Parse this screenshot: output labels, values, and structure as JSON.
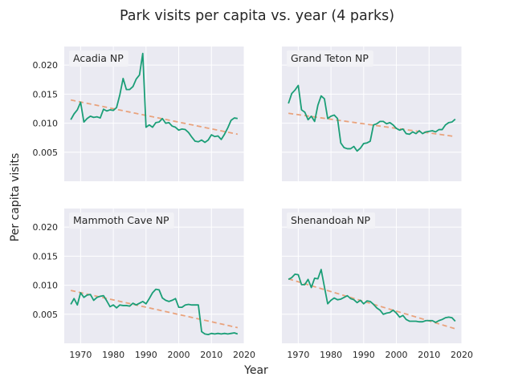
{
  "figure": {
    "title": "Park visits per capita vs. year (4 parks)",
    "xlabel": "Year",
    "ylabel": "Per capita visits"
  },
  "colors": {
    "background": "#eaeaf2",
    "grid": "#ffffff",
    "series": "#1b9e77",
    "trend": "#e9a27c",
    "label_box": "#f2f2f6"
  },
  "chart_data": {
    "type": "line",
    "layout": "2x2 small multiples, shared x and y axes",
    "xlim": [
      1965,
      2020
    ],
    "ylim": [
      0,
      0.0232
    ],
    "xticks": [
      1970,
      1980,
      1990,
      2000,
      2010,
      2020
    ],
    "yticks": [
      0.005,
      0.01,
      0.015,
      0.02
    ],
    "ytick_labels": [
      "0.005",
      "0.010",
      "0.015",
      "0.020"
    ],
    "grid": true,
    "trend_style": "dashed",
    "x": [
      1967,
      1968,
      1969,
      1970,
      1971,
      1972,
      1973,
      1974,
      1975,
      1976,
      1977,
      1978,
      1979,
      1980,
      1981,
      1982,
      1983,
      1984,
      1985,
      1986,
      1987,
      1988,
      1989,
      1990,
      1991,
      1992,
      1993,
      1994,
      1995,
      1996,
      1997,
      1998,
      1999,
      2000,
      2001,
      2002,
      2003,
      2004,
      2005,
      2006,
      2007,
      2008,
      2009,
      2010,
      2011,
      2012,
      2013,
      2014,
      2015,
      2016,
      2017,
      2018
    ],
    "panels": [
      {
        "label": "Acadia NP",
        "values": [
          0.0106,
          0.0116,
          0.0123,
          0.0136,
          0.0102,
          0.0108,
          0.0112,
          0.011,
          0.0111,
          0.0109,
          0.0124,
          0.0121,
          0.0123,
          0.0122,
          0.0127,
          0.0149,
          0.0177,
          0.0158,
          0.0158,
          0.0163,
          0.0176,
          0.0183,
          0.022,
          0.0093,
          0.0097,
          0.0093,
          0.0101,
          0.0102,
          0.0108,
          0.01,
          0.0101,
          0.0095,
          0.0093,
          0.0088,
          0.009,
          0.0089,
          0.0084,
          0.0076,
          0.0069,
          0.0068,
          0.0071,
          0.0067,
          0.0071,
          0.008,
          0.0077,
          0.0078,
          0.0072,
          0.0081,
          0.0092,
          0.0105,
          0.0109,
          0.0108
        ],
        "trend": [
          [
            1967,
            0.014
          ],
          [
            2018,
            0.0081
          ]
        ]
      },
      {
        "label": "Grand Teton NP",
        "values": [
          0.0134,
          0.0151,
          0.0157,
          0.0165,
          0.0123,
          0.0119,
          0.0106,
          0.0112,
          0.0103,
          0.0131,
          0.0147,
          0.0142,
          0.0108,
          0.0112,
          0.0114,
          0.0108,
          0.0066,
          0.0058,
          0.0056,
          0.0056,
          0.006,
          0.0052,
          0.0057,
          0.0065,
          0.0066,
          0.0069,
          0.0097,
          0.0099,
          0.0103,
          0.0103,
          0.0099,
          0.0101,
          0.0097,
          0.0091,
          0.0088,
          0.009,
          0.0082,
          0.0081,
          0.0085,
          0.0082,
          0.0087,
          0.0082,
          0.0085,
          0.0086,
          0.0087,
          0.0085,
          0.0089,
          0.0089,
          0.0097,
          0.0101,
          0.0102,
          0.0107
        ],
        "trend": [
          [
            1967,
            0.0117
          ],
          [
            2018,
            0.0077
          ]
        ]
      },
      {
        "label": "Mammoth Cave NP",
        "values": [
          0.0067,
          0.0077,
          0.0066,
          0.0087,
          0.0079,
          0.0083,
          0.0084,
          0.0074,
          0.0079,
          0.0081,
          0.0082,
          0.0073,
          0.0063,
          0.0066,
          0.0061,
          0.0066,
          0.0065,
          0.0065,
          0.0064,
          0.0069,
          0.0066,
          0.0069,
          0.0072,
          0.0068,
          0.0077,
          0.0087,
          0.0093,
          0.0092,
          0.0078,
          0.0074,
          0.0072,
          0.0074,
          0.0077,
          0.0062,
          0.0062,
          0.0066,
          0.0067,
          0.0066,
          0.0066,
          0.0066,
          0.002,
          0.0016,
          0.0015,
          0.0017,
          0.0016,
          0.0017,
          0.0016,
          0.0017,
          0.0016,
          0.0017,
          0.0018,
          0.0016
        ],
        "trend": [
          [
            1967,
            0.0091
          ],
          [
            2018,
            0.0027
          ]
        ]
      },
      {
        "label": "Shenandoah NP",
        "values": [
          0.011,
          0.0113,
          0.0119,
          0.0118,
          0.0101,
          0.0101,
          0.011,
          0.0096,
          0.0112,
          0.0111,
          0.0127,
          0.0097,
          0.0068,
          0.0074,
          0.0078,
          0.0075,
          0.0076,
          0.0079,
          0.0082,
          0.0077,
          0.0075,
          0.007,
          0.0074,
          0.0068,
          0.0073,
          0.0072,
          0.0067,
          0.0061,
          0.0057,
          0.005,
          0.0052,
          0.0053,
          0.0057,
          0.0052,
          0.0045,
          0.0048,
          0.0041,
          0.0038,
          0.0038,
          0.0038,
          0.0037,
          0.0037,
          0.0039,
          0.0039,
          0.0039,
          0.0036,
          0.0039,
          0.0041,
          0.0044,
          0.0045,
          0.0044,
          0.0038
        ],
        "trend": [
          [
            1967,
            0.0111
          ],
          [
            2018,
            0.0025
          ]
        ]
      }
    ]
  }
}
